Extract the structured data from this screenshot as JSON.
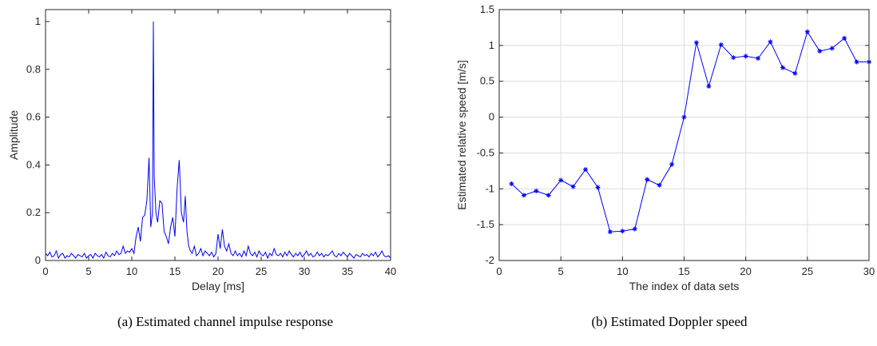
{
  "chart_data": [
    {
      "type": "line",
      "panel": "a",
      "caption": "(a) Estimated channel impulse response",
      "xlabel": "Delay [ms]",
      "ylabel": "Amplitude",
      "xlim": [
        0,
        40
      ],
      "ylim": [
        0,
        1.05
      ],
      "xticks": [
        0,
        5,
        10,
        15,
        20,
        25,
        30,
        35,
        40
      ],
      "yticks": [
        0,
        0.2,
        0.4,
        0.6,
        0.8,
        1
      ],
      "ytick_labels": [
        "0",
        "0.2",
        "0.4",
        "0.6",
        "0.8",
        "1"
      ],
      "grid": false,
      "line_color": "#0000ff",
      "series": [
        {
          "x": [
            0,
            0.25,
            0.5,
            0.75,
            1.0,
            1.25,
            1.5,
            1.75,
            2.0,
            2.25,
            2.5,
            2.75,
            3.0,
            3.25,
            3.5,
            3.75,
            4.0,
            4.25,
            4.5,
            4.75,
            5.0,
            5.25,
            5.5,
            5.75,
            6.0,
            6.25,
            6.5,
            6.75,
            7.0,
            7.25,
            7.5,
            7.75,
            8.0,
            8.25,
            8.5,
            8.75,
            9.0,
            9.25,
            9.5,
            9.75,
            10.0,
            10.25,
            10.5,
            10.75,
            11.0,
            11.25,
            11.5,
            11.75,
            12.0,
            12.2,
            12.4,
            12.5,
            12.6,
            12.8,
            13.0,
            13.25,
            13.5,
            13.75,
            14.0,
            14.25,
            14.5,
            14.75,
            15.0,
            15.25,
            15.5,
            15.75,
            16.0,
            16.2,
            16.4,
            16.6,
            16.8,
            17.0,
            17.25,
            17.5,
            17.75,
            18.0,
            18.25,
            18.5,
            18.75,
            19.0,
            19.25,
            19.5,
            19.75,
            20.0,
            20.25,
            20.5,
            20.75,
            21.0,
            21.25,
            21.5,
            21.75,
            22.0,
            22.25,
            22.5,
            22.75,
            23.0,
            23.25,
            23.5,
            23.75,
            24.0,
            24.25,
            24.5,
            24.75,
            25.0,
            25.25,
            25.5,
            25.75,
            26.0,
            26.25,
            26.5,
            26.75,
            27.0,
            27.25,
            27.5,
            27.75,
            28.0,
            28.25,
            28.5,
            28.75,
            29.0,
            29.25,
            29.5,
            29.75,
            30.0,
            30.25,
            30.5,
            30.75,
            31.0,
            31.25,
            31.5,
            31.75,
            32.0,
            32.25,
            32.5,
            32.75,
            33.0,
            33.25,
            33.5,
            33.75,
            34.0,
            34.25,
            34.5,
            34.75,
            35.0,
            35.25,
            35.5,
            35.75,
            36.0,
            36.25,
            36.5,
            36.75,
            37.0,
            37.25,
            37.5,
            37.75,
            38.0,
            38.25,
            38.5,
            38.75,
            39.0,
            39.25,
            39.5,
            39.75,
            40.0
          ],
          "y": [
            0.03,
            0.02,
            0.035,
            0.015,
            0.02,
            0.04,
            0.01,
            0.025,
            0.03,
            0.01,
            0.02,
            0.015,
            0.03,
            0.02,
            0.01,
            0.025,
            0.02,
            0.015,
            0.03,
            0.01,
            0.02,
            0.025,
            0.01,
            0.03,
            0.02,
            0.015,
            0.025,
            0.01,
            0.035,
            0.02,
            0.015,
            0.03,
            0.02,
            0.04,
            0.025,
            0.03,
            0.06,
            0.03,
            0.04,
            0.035,
            0.05,
            0.03,
            0.1,
            0.14,
            0.08,
            0.18,
            0.19,
            0.25,
            0.43,
            0.14,
            0.2,
            1.0,
            0.35,
            0.2,
            0.16,
            0.25,
            0.24,
            0.12,
            0.1,
            0.07,
            0.14,
            0.18,
            0.1,
            0.3,
            0.42,
            0.2,
            0.16,
            0.27,
            0.12,
            0.06,
            0.04,
            0.03,
            0.06,
            0.02,
            0.03,
            0.05,
            0.02,
            0.04,
            0.03,
            0.02,
            0.035,
            0.015,
            0.03,
            0.11,
            0.05,
            0.13,
            0.06,
            0.04,
            0.07,
            0.03,
            0.02,
            0.04,
            0.02,
            0.03,
            0.015,
            0.04,
            0.02,
            0.06,
            0.03,
            0.02,
            0.035,
            0.015,
            0.04,
            0.025,
            0.02,
            0.035,
            0.01,
            0.03,
            0.02,
            0.05,
            0.025,
            0.02,
            0.03,
            0.015,
            0.035,
            0.02,
            0.04,
            0.025,
            0.015,
            0.03,
            0.02,
            0.035,
            0.015,
            0.025,
            0.04,
            0.02,
            0.03,
            0.015,
            0.02,
            0.035,
            0.02,
            0.03,
            0.015,
            0.025,
            0.02,
            0.03,
            0.04,
            0.02,
            0.015,
            0.03,
            0.02,
            0.035,
            0.025,
            0.015,
            0.03,
            0.02,
            0.01,
            0.025,
            0.02,
            0.015,
            0.03,
            0.02,
            0.025,
            0.015,
            0.03,
            0.02,
            0.035,
            0.015,
            0.025,
            0.04,
            0.02,
            0.015,
            0.02,
            0.01
          ]
        }
      ]
    },
    {
      "type": "line",
      "panel": "b",
      "caption": "(b) Estimated Doppler speed",
      "xlabel": "The index of data sets",
      "ylabel": "Estimated relative speed [m/s]",
      "xlim": [
        0,
        30
      ],
      "ylim": [
        -2,
        1.5
      ],
      "xticks": [
        0,
        5,
        10,
        15,
        20,
        25,
        30
      ],
      "yticks": [
        -2,
        -1.5,
        -1,
        -0.5,
        0,
        0.5,
        1,
        1.5
      ],
      "ytick_labels": [
        "-2",
        "-1.5",
        "-1",
        "-0.5",
        "0",
        "0.5",
        "1",
        "1.5"
      ],
      "grid": true,
      "line_color": "#0000ff",
      "marker": "asterisk",
      "series": [
        {
          "x": [
            1,
            2,
            3,
            4,
            5,
            6,
            7,
            8,
            9,
            10,
            11,
            12,
            13,
            14,
            15,
            16,
            17,
            18,
            19,
            20,
            21,
            22,
            23,
            24,
            25,
            26,
            27,
            28,
            29,
            30
          ],
          "y": [
            -0.93,
            -1.09,
            -1.03,
            -1.09,
            -0.88,
            -0.97,
            -0.73,
            -0.98,
            -1.6,
            -1.59,
            -1.56,
            -0.87,
            -0.95,
            -0.66,
            0.0,
            1.04,
            0.43,
            1.01,
            0.83,
            0.85,
            0.82,
            1.05,
            0.69,
            0.61,
            1.19,
            0.92,
            0.96,
            1.1,
            0.77,
            0.77
          ]
        }
      ]
    }
  ]
}
